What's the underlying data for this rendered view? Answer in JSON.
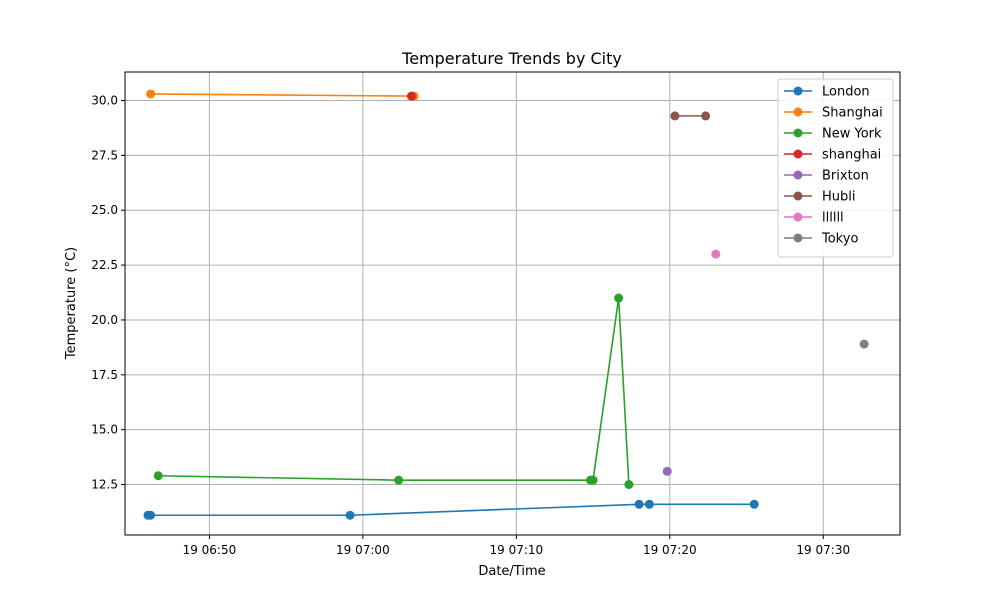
{
  "chart_data": {
    "type": "line",
    "title": "Temperature Trends by City",
    "xlabel": "Date/Time",
    "ylabel": "Temperature (°C)",
    "xlim": [
      "19 06:44:30",
      "19 07:35:00"
    ],
    "ylim": [
      10.2,
      31.3
    ],
    "grid": true,
    "legend_position": "top-right",
    "x_ticks": [
      {
        "time": "19 06:50:00",
        "label": "19 06:50"
      },
      {
        "time": "19 07:00:00",
        "label": "19 07:00"
      },
      {
        "time": "19 07:10:00",
        "label": "19 07:10"
      },
      {
        "time": "19 07:20:00",
        "label": "19 07:20"
      },
      {
        "time": "19 07:30:00",
        "label": "19 07:30"
      }
    ],
    "y_ticks": [
      "12.5",
      "15.0",
      "17.5",
      "20.0",
      "22.5",
      "25.0",
      "27.5",
      "30.0"
    ],
    "series": [
      {
        "name": "London",
        "color": "#1f77b4",
        "points": [
          [
            "19 06:46:00",
            11.1
          ],
          [
            "19 06:46:10",
            11.1
          ],
          [
            "19 06:59:10",
            11.1
          ],
          [
            "19 07:18:00",
            11.6
          ],
          [
            "19 07:18:40",
            11.6
          ],
          [
            "19 07:25:30",
            11.6
          ]
        ]
      },
      {
        "name": "Shanghai",
        "color": "#ff7f0e",
        "points": [
          [
            "19 06:46:10",
            30.3
          ],
          [
            "19 07:03:20",
            30.2
          ]
        ]
      },
      {
        "name": "New York",
        "color": "#2ca02c",
        "points": [
          [
            "19 06:46:40",
            12.9
          ],
          [
            "19 07:02:20",
            12.7
          ],
          [
            "19 07:14:50",
            12.7
          ],
          [
            "19 07:15:00",
            12.7
          ],
          [
            "19 07:16:40",
            21.0
          ],
          [
            "19 07:17:20",
            12.5
          ]
        ]
      },
      {
        "name": "shanghai",
        "color": "#d62728",
        "points": [
          [
            "19 07:03:10",
            30.2
          ]
        ]
      },
      {
        "name": "Brixton",
        "color": "#9467bd",
        "points": [
          [
            "19 07:19:50",
            13.1
          ]
        ]
      },
      {
        "name": "Hubli",
        "color": "#8c564b",
        "points": [
          [
            "19 07:20:20",
            29.3
          ],
          [
            "19 07:22:20",
            29.3
          ]
        ]
      },
      {
        "name": "llllll",
        "color": "#e377c2",
        "points": [
          [
            "19 07:23:00",
            23.0
          ]
        ]
      },
      {
        "name": "Tokyo",
        "color": "#7f7f7f",
        "points": [
          [
            "19 07:32:40",
            18.9
          ]
        ]
      }
    ]
  }
}
